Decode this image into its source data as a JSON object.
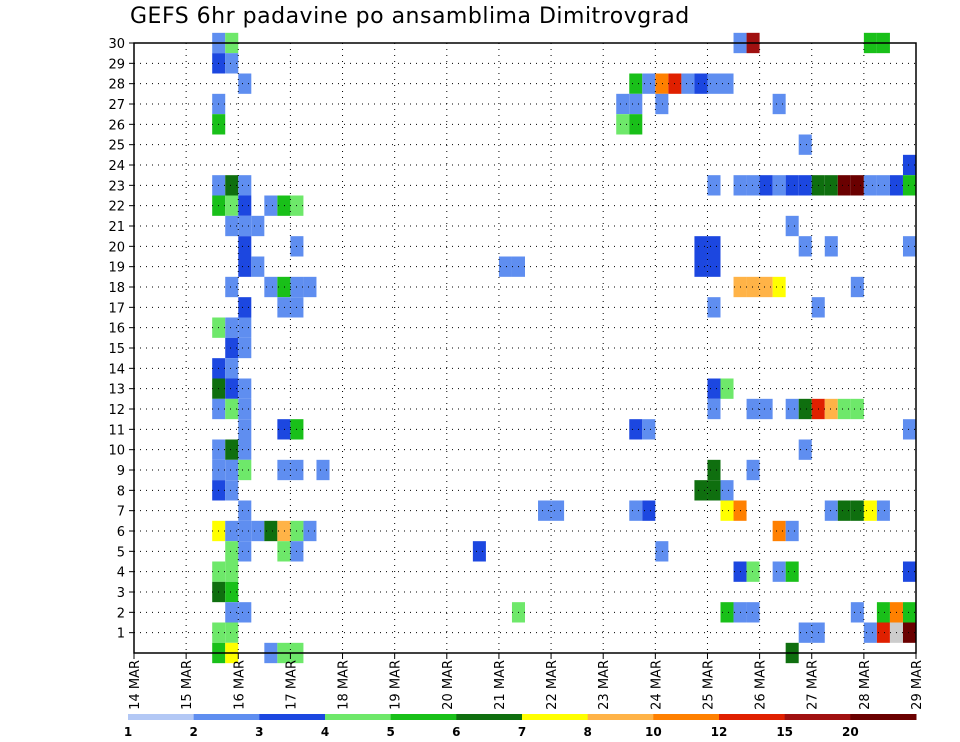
{
  "chart_data": {
    "type": "heatmap",
    "title": "GEFS 6hr padavine po ansamblima Dimitrovgrad",
    "xlabel": "",
    "ylabel": "",
    "x_ticks": [
      "14 MAR",
      "15 MAR",
      "16 MAR",
      "17 MAR",
      "18 MAR",
      "19 MAR",
      "20 MAR",
      "21 MAR",
      "22 MAR",
      "23 MAR",
      "24 MAR",
      "25 MAR",
      "26 MAR",
      "27 MAR",
      "28 MAR",
      "29 MAR"
    ],
    "xlim": [
      0,
      60
    ],
    "x_unit": "6-hour steps from 14 MAR",
    "y_ticks": [
      1,
      2,
      3,
      4,
      5,
      6,
      7,
      8,
      9,
      10,
      11,
      12,
      13,
      14,
      15,
      16,
      17,
      18,
      19,
      20,
      21,
      22,
      23,
      24,
      25,
      26,
      27,
      28,
      29,
      30
    ],
    "ylim": [
      0,
      30
    ],
    "grid": true,
    "legend": {
      "placement": "bottom",
      "levels": [
        "1",
        "2",
        "3",
        "4",
        "5",
        "6",
        "7",
        "8",
        "10",
        "12",
        "15",
        "20"
      ],
      "colors": [
        "#b3c8f5",
        "#5f8ef0",
        "#1c47e0",
        "#6ee86a",
        "#19c019",
        "#0f6f0f",
        "#ffff00",
        "#ffb347",
        "#ff8000",
        "#e02000",
        "#a01010",
        "#6a0000"
      ]
    },
    "cells": [
      [
        6,
        30,
        1
      ],
      [
        7,
        30,
        3
      ],
      [
        46,
        30,
        1
      ],
      [
        47,
        30,
        10
      ],
      [
        56,
        30,
        4
      ],
      [
        57,
        30,
        4
      ],
      [
        6,
        29,
        2
      ],
      [
        7,
        29,
        1
      ],
      [
        8,
        28,
        1
      ],
      [
        38,
        28,
        4
      ],
      [
        39,
        28,
        1
      ],
      [
        40,
        28,
        8
      ],
      [
        41,
        28,
        9
      ],
      [
        42,
        28,
        1
      ],
      [
        43,
        28,
        2
      ],
      [
        44,
        28,
        1
      ],
      [
        45,
        28,
        1
      ],
      [
        6,
        27,
        1
      ],
      [
        37,
        27,
        1
      ],
      [
        38,
        27,
        1
      ],
      [
        40,
        27,
        1
      ],
      [
        49,
        27,
        1
      ],
      [
        6,
        26,
        4
      ],
      [
        37,
        26,
        3
      ],
      [
        38,
        26,
        4
      ],
      [
        51,
        25,
        1
      ],
      [
        59,
        24,
        2
      ],
      [
        6,
        23,
        1
      ],
      [
        7,
        23,
        5
      ],
      [
        8,
        23,
        1
      ],
      [
        44,
        23,
        1
      ],
      [
        46,
        23,
        1
      ],
      [
        47,
        23,
        1
      ],
      [
        48,
        23,
        2
      ],
      [
        49,
        23,
        1
      ],
      [
        50,
        23,
        2
      ],
      [
        51,
        23,
        2
      ],
      [
        52,
        23,
        5
      ],
      [
        53,
        23,
        5
      ],
      [
        54,
        23,
        11
      ],
      [
        55,
        23,
        11
      ],
      [
        56,
        23,
        1
      ],
      [
        57,
        23,
        1
      ],
      [
        58,
        23,
        2
      ],
      [
        59,
        23,
        4
      ],
      [
        6,
        22,
        4
      ],
      [
        7,
        22,
        3
      ],
      [
        8,
        22,
        2
      ],
      [
        10,
        22,
        1
      ],
      [
        11,
        22,
        4
      ],
      [
        12,
        22,
        3
      ],
      [
        7,
        21,
        1
      ],
      [
        8,
        21,
        1
      ],
      [
        9,
        21,
        1
      ],
      [
        50,
        21,
        1
      ],
      [
        8,
        20,
        2
      ],
      [
        12,
        20,
        1
      ],
      [
        43,
        20,
        2
      ],
      [
        44,
        20,
        2
      ],
      [
        51,
        20,
        1
      ],
      [
        53,
        20,
        1
      ],
      [
        59,
        20,
        1
      ],
      [
        8,
        19,
        2
      ],
      [
        9,
        19,
        1
      ],
      [
        28,
        19,
        1
      ],
      [
        29,
        19,
        1
      ],
      [
        43,
        19,
        2
      ],
      [
        44,
        19,
        2
      ],
      [
        46,
        18,
        7
      ],
      [
        47,
        18,
        7
      ],
      [
        48,
        18,
        7
      ],
      [
        49,
        18,
        6
      ],
      [
        7,
        18,
        1
      ],
      [
        10,
        18,
        1
      ],
      [
        11,
        18,
        4
      ],
      [
        12,
        18,
        1
      ],
      [
        13,
        18,
        1
      ],
      [
        55,
        18,
        1
      ],
      [
        8,
        17,
        2
      ],
      [
        11,
        17,
        1
      ],
      [
        12,
        17,
        1
      ],
      [
        44,
        17,
        1
      ],
      [
        52,
        17,
        1
      ],
      [
        6,
        16,
        3
      ],
      [
        7,
        16,
        1
      ],
      [
        8,
        16,
        1
      ],
      [
        7,
        15,
        2
      ],
      [
        8,
        15,
        1
      ],
      [
        6,
        14,
        2
      ],
      [
        7,
        14,
        1
      ],
      [
        6,
        13,
        5
      ],
      [
        7,
        13,
        2
      ],
      [
        8,
        13,
        1
      ],
      [
        44,
        13,
        2
      ],
      [
        45,
        13,
        3
      ],
      [
        6,
        12,
        1
      ],
      [
        7,
        12,
        3
      ],
      [
        8,
        12,
        1
      ],
      [
        44,
        12,
        1
      ],
      [
        47,
        12,
        1
      ],
      [
        48,
        12,
        1
      ],
      [
        50,
        12,
        1
      ],
      [
        51,
        12,
        5
      ],
      [
        52,
        12,
        9
      ],
      [
        53,
        12,
        7
      ],
      [
        54,
        12,
        3
      ],
      [
        55,
        12,
        3
      ],
      [
        8,
        11,
        1
      ],
      [
        11,
        11,
        2
      ],
      [
        12,
        11,
        4
      ],
      [
        38,
        11,
        2
      ],
      [
        39,
        11,
        1
      ],
      [
        59,
        11,
        1
      ],
      [
        6,
        10,
        1
      ],
      [
        7,
        10,
        5
      ],
      [
        8,
        10,
        1
      ],
      [
        51,
        10,
        1
      ],
      [
        6,
        9,
        1
      ],
      [
        7,
        9,
        1
      ],
      [
        8,
        9,
        3
      ],
      [
        11,
        9,
        1
      ],
      [
        12,
        9,
        1
      ],
      [
        14,
        9,
        1
      ],
      [
        44,
        9,
        5
      ],
      [
        47,
        9,
        1
      ],
      [
        6,
        8,
        2
      ],
      [
        7,
        8,
        1
      ],
      [
        43,
        8,
        5
      ],
      [
        44,
        8,
        5
      ],
      [
        45,
        8,
        1
      ],
      [
        8,
        7,
        1
      ],
      [
        31,
        7,
        1
      ],
      [
        32,
        7,
        1
      ],
      [
        38,
        7,
        1
      ],
      [
        39,
        7,
        2
      ],
      [
        45,
        7,
        6
      ],
      [
        46,
        7,
        8
      ],
      [
        53,
        7,
        1
      ],
      [
        54,
        7,
        5
      ],
      [
        55,
        7,
        5
      ],
      [
        56,
        7,
        6
      ],
      [
        57,
        7,
        1
      ],
      [
        6,
        6,
        6
      ],
      [
        7,
        6,
        1
      ],
      [
        8,
        6,
        1
      ],
      [
        9,
        6,
        1
      ],
      [
        10,
        6,
        5
      ],
      [
        11,
        6,
        7
      ],
      [
        12,
        6,
        3
      ],
      [
        13,
        6,
        1
      ],
      [
        49,
        6,
        8
      ],
      [
        50,
        6,
        1
      ],
      [
        7,
        5,
        3
      ],
      [
        8,
        5,
        1
      ],
      [
        11,
        5,
        3
      ],
      [
        12,
        5,
        1
      ],
      [
        26,
        5,
        2
      ],
      [
        40,
        5,
        1
      ],
      [
        6,
        4,
        3
      ],
      [
        7,
        4,
        3
      ],
      [
        46,
        4,
        2
      ],
      [
        47,
        4,
        3
      ],
      [
        49,
        4,
        1
      ],
      [
        50,
        4,
        4
      ],
      [
        59,
        4,
        2
      ],
      [
        6,
        3,
        5
      ],
      [
        7,
        3,
        4
      ],
      [
        7,
        2,
        1
      ],
      [
        8,
        2,
        1
      ],
      [
        29,
        2,
        3
      ],
      [
        45,
        2,
        4
      ],
      [
        46,
        2,
        1
      ],
      [
        47,
        2,
        1
      ],
      [
        55,
        2,
        1
      ],
      [
        57,
        2,
        4
      ],
      [
        58,
        2,
        8
      ],
      [
        59,
        2,
        4
      ],
      [
        6,
        1,
        3
      ],
      [
        7,
        1,
        3
      ],
      [
        51,
        1,
        1
      ],
      [
        52,
        1,
        1
      ],
      [
        56,
        1,
        1
      ],
      [
        57,
        1,
        9
      ],
      [
        58,
        1,
        12
      ],
      [
        59,
        1,
        11
      ],
      [
        6,
        0,
        4
      ],
      [
        7,
        0,
        6
      ],
      [
        10,
        0,
        1
      ],
      [
        11,
        0,
        3
      ],
      [
        12,
        0,
        3
      ],
      [
        50,
        0,
        5
      ]
    ]
  }
}
